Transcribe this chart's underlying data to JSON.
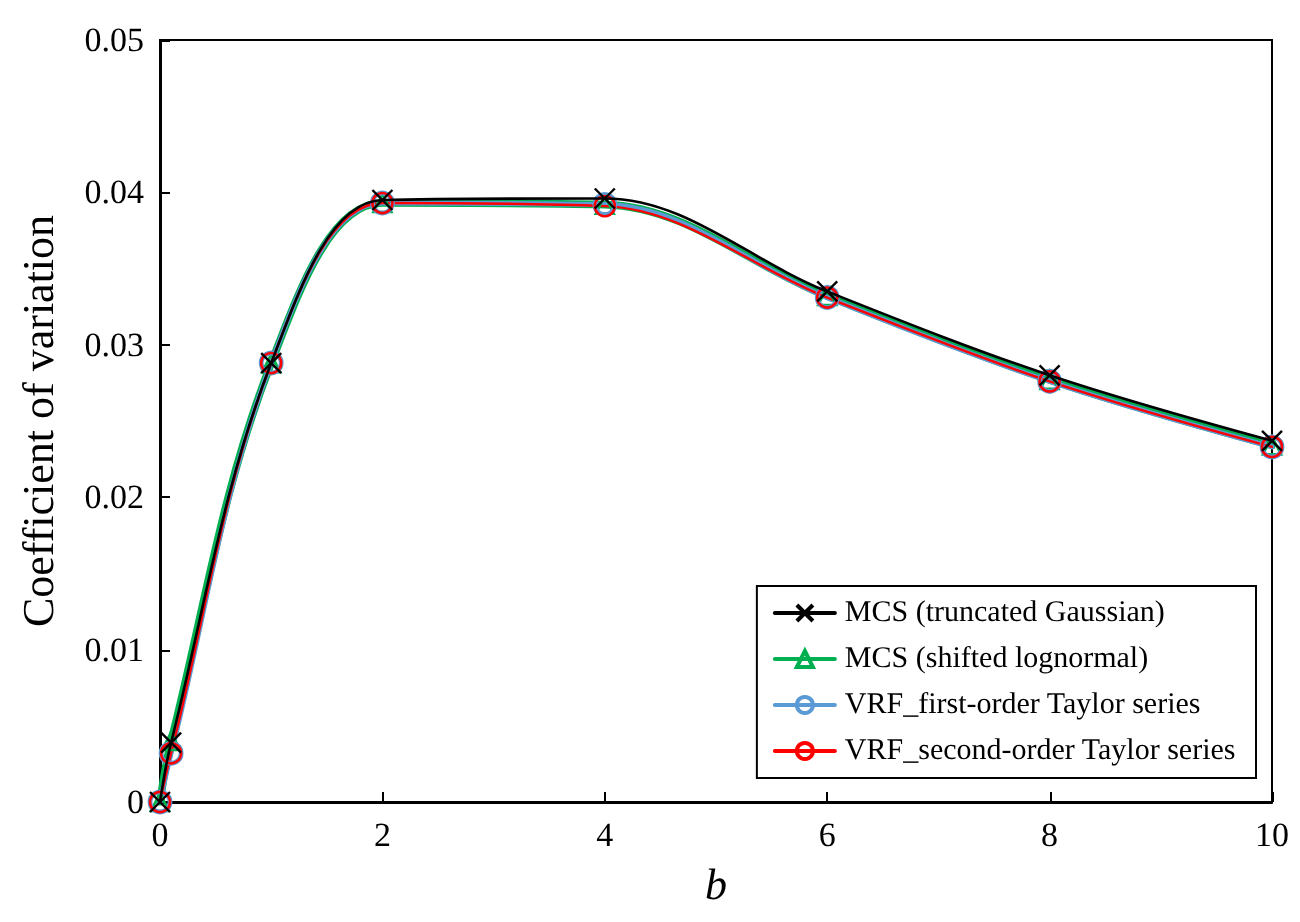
{
  "chart_data": {
    "type": "line",
    "xlabel": "b",
    "ylabel": "Coefficient of variation",
    "x": [
      0,
      0.1,
      1,
      2,
      4,
      6,
      8,
      10
    ],
    "series": [
      {
        "name": "MCS (truncated Gaussian)",
        "color": "#000000",
        "marker": "cross",
        "values": [
          0,
          0.0039,
          0.0288,
          0.0395,
          0.0396,
          0.0335,
          0.028,
          0.0237
        ]
      },
      {
        "name": "MCS (shifted lognormal)",
        "color": "#00b050",
        "marker": "triangle",
        "values": [
          0,
          0.004,
          0.0288,
          0.0393,
          0.0392,
          0.0332,
          0.0277,
          0.0234
        ]
      },
      {
        "name": "VRF_first-order Taylor series",
        "color": "#5b9bd5",
        "marker": "circle",
        "values": [
          0,
          0.0032,
          0.0288,
          0.0393,
          0.0392,
          0.0331,
          0.0276,
          0.0233
        ]
      },
      {
        "name": "VRF_second-order Taylor series",
        "color": "#ff0000",
        "marker": "circle",
        "values": [
          0,
          0.0032,
          0.0288,
          0.0393,
          0.0391,
          0.0331,
          0.0276,
          0.0233
        ]
      }
    ],
    "xlim": [
      0,
      10
    ],
    "xticks": [
      0,
      2,
      4,
      6,
      8,
      10
    ],
    "ylim": [
      0,
      0.05
    ],
    "yticks": [
      0,
      0.01,
      0.02,
      0.03,
      0.04,
      0.05
    ],
    "grid": false,
    "legend": "bottom right",
    "line_style": "solid"
  }
}
